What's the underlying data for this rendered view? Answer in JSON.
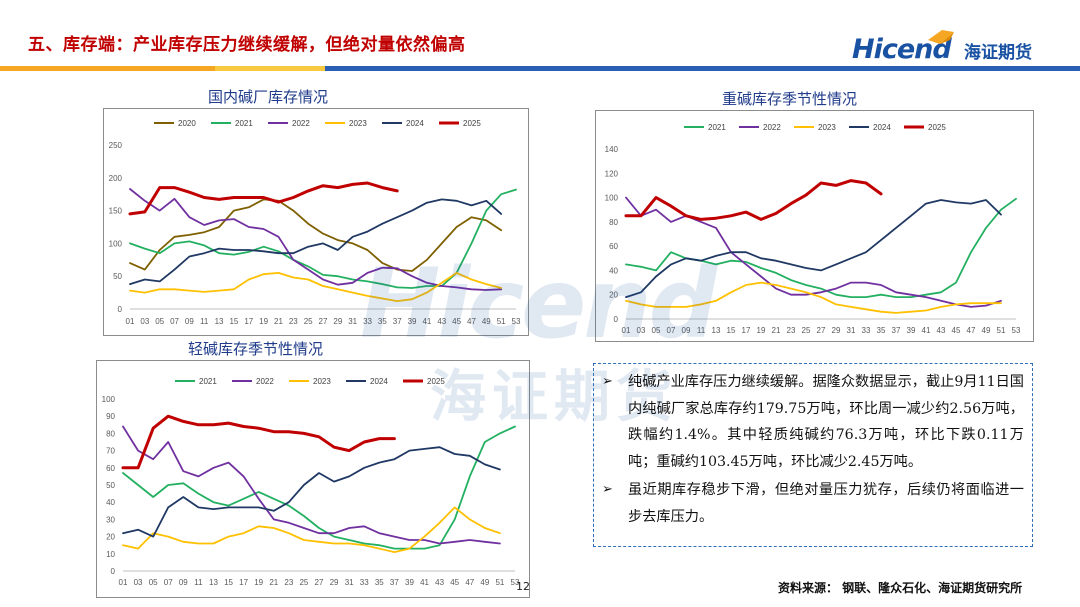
{
  "header": {
    "title": "五、库存端：产业库存压力继续缓解，但绝对量依然偏高",
    "logo_text": "Hicend",
    "logo_cn": "海证期货"
  },
  "colors": {
    "title_red": "#c00000",
    "brand_blue": "#1a52a3",
    "bar_blue": "#2b5fb4",
    "bar_orange": "#f5a623",
    "bar_yellow": "#f8c940"
  },
  "series_colors": {
    "2020": "#7f6000",
    "2021": "#23b061",
    "2022": "#7030a0",
    "2023": "#ffc000",
    "2024": "#1f3864",
    "2025": "#c00000"
  },
  "chart_data": [
    {
      "type": "line",
      "title": "国内碱厂库存情况",
      "ylim": [
        0,
        250
      ],
      "yticks": [
        0,
        50,
        100,
        150,
        200,
        250
      ],
      "x_tick_labels": [
        "01",
        "03",
        "05",
        "07",
        "09",
        "11",
        "13",
        "15",
        "17",
        "19",
        "21",
        "23",
        "25",
        "27",
        "29",
        "31",
        "33",
        "35",
        "37",
        "39",
        "41",
        "43",
        "45",
        "47",
        "49",
        "51",
        "53"
      ],
      "x": [
        1,
        3,
        5,
        7,
        9,
        11,
        13,
        15,
        17,
        19,
        21,
        23,
        25,
        27,
        29,
        31,
        33,
        35,
        37,
        39,
        41,
        43,
        45,
        47,
        49,
        51,
        53
      ],
      "legend": [
        "2020",
        "2021",
        "2022",
        "2023",
        "2024",
        "2025"
      ],
      "series": [
        {
          "name": "2020",
          "values": [
            70,
            60,
            90,
            110,
            113,
            117,
            125,
            150,
            155,
            167,
            165,
            150,
            130,
            115,
            105,
            100,
            90,
            70,
            60,
            58,
            75,
            100,
            125,
            140,
            135,
            120,
            null
          ]
        },
        {
          "name": "2021",
          "values": [
            100,
            92,
            85,
            100,
            103,
            97,
            85,
            83,
            87,
            95,
            88,
            75,
            65,
            52,
            50,
            45,
            42,
            38,
            33,
            32,
            35,
            35,
            55,
            100,
            150,
            175,
            182
          ]
        },
        {
          "name": "2022",
          "values": [
            183,
            165,
            150,
            168,
            140,
            128,
            135,
            137,
            125,
            122,
            110,
            75,
            60,
            45,
            37,
            40,
            55,
            63,
            62,
            50,
            40,
            35,
            33,
            30,
            29,
            30,
            null
          ]
        },
        {
          "name": "2023",
          "values": [
            28,
            25,
            30,
            30,
            28,
            26,
            28,
            30,
            45,
            53,
            55,
            48,
            45,
            35,
            30,
            25,
            20,
            16,
            12,
            15,
            25,
            40,
            55,
            45,
            38,
            32,
            null
          ]
        },
        {
          "name": "2024",
          "values": [
            38,
            45,
            42,
            60,
            80,
            85,
            92,
            90,
            90,
            88,
            85,
            85,
            95,
            100,
            90,
            110,
            118,
            130,
            140,
            150,
            162,
            167,
            165,
            158,
            165,
            145,
            null
          ]
        },
        {
          "name": "2025",
          "values": [
            145,
            148,
            185,
            185,
            178,
            170,
            167,
            170,
            170,
            170,
            163,
            170,
            180,
            188,
            185,
            190,
            192,
            185,
            180,
            null,
            null,
            null,
            null,
            null,
            null,
            null,
            null
          ]
        }
      ]
    },
    {
      "type": "line",
      "title": "重碱库存季节性情况",
      "ylim": [
        0,
        140
      ],
      "yticks": [
        0,
        20,
        40,
        60,
        80,
        100,
        120,
        140
      ],
      "x_tick_labels": [
        "01",
        "03",
        "05",
        "07",
        "09",
        "11",
        "13",
        "15",
        "17",
        "19",
        "21",
        "23",
        "25",
        "27",
        "29",
        "31",
        "33",
        "35",
        "37",
        "39",
        "41",
        "43",
        "45",
        "47",
        "49",
        "51",
        "53"
      ],
      "x": [
        1,
        3,
        5,
        7,
        9,
        11,
        13,
        15,
        17,
        19,
        21,
        23,
        25,
        27,
        29,
        31,
        33,
        35,
        37,
        39,
        41,
        43,
        45,
        47,
        49,
        51,
        53
      ],
      "legend": [
        "2021",
        "2022",
        "2023",
        "2024",
        "2025"
      ],
      "series": [
        {
          "name": "2021",
          "values": [
            45,
            43,
            40,
            55,
            50,
            48,
            45,
            48,
            47,
            42,
            38,
            32,
            28,
            25,
            20,
            18,
            18,
            20,
            18,
            18,
            20,
            22,
            30,
            55,
            75,
            90,
            99
          ]
        },
        {
          "name": "2022",
          "values": [
            100,
            85,
            90,
            80,
            85,
            80,
            75,
            55,
            45,
            35,
            25,
            20,
            20,
            22,
            25,
            30,
            30,
            28,
            22,
            20,
            18,
            15,
            12,
            10,
            11,
            15,
            null
          ]
        },
        {
          "name": "2023",
          "values": [
            15,
            12,
            10,
            10,
            10,
            12,
            15,
            22,
            28,
            30,
            28,
            25,
            22,
            18,
            12,
            10,
            8,
            6,
            5,
            6,
            7,
            10,
            12,
            13,
            13,
            13,
            null
          ]
        },
        {
          "name": "2024",
          "values": [
            18,
            22,
            35,
            45,
            50,
            48,
            52,
            55,
            55,
            50,
            48,
            45,
            42,
            40,
            45,
            50,
            55,
            65,
            75,
            85,
            95,
            98,
            96,
            95,
            98,
            86,
            null
          ]
        },
        {
          "name": "2025",
          "values": [
            85,
            85,
            100,
            93,
            85,
            82,
            83,
            85,
            88,
            82,
            87,
            95,
            102,
            112,
            110,
            114,
            112,
            103,
            null,
            null,
            null,
            null,
            null,
            null,
            null,
            null,
            null
          ]
        }
      ]
    },
    {
      "type": "line",
      "title": "轻碱库存季节性情况",
      "ylim": [
        0,
        100
      ],
      "yticks": [
        0,
        10,
        20,
        30,
        40,
        50,
        60,
        70,
        80,
        90,
        100
      ],
      "x_tick_labels": [
        "01",
        "03",
        "05",
        "07",
        "09",
        "11",
        "13",
        "15",
        "17",
        "19",
        "21",
        "23",
        "25",
        "27",
        "29",
        "31",
        "33",
        "35",
        "37",
        "39",
        "41",
        "43",
        "45",
        "47",
        "49",
        "51",
        "53"
      ],
      "x": [
        1,
        3,
        5,
        7,
        9,
        11,
        13,
        15,
        17,
        19,
        21,
        23,
        25,
        27,
        29,
        31,
        33,
        35,
        37,
        39,
        41,
        43,
        45,
        47,
        49,
        51,
        53
      ],
      "legend": [
        "2021",
        "2022",
        "2023",
        "2024",
        "2025"
      ],
      "series": [
        {
          "name": "2021",
          "values": [
            57,
            50,
            43,
            50,
            51,
            45,
            40,
            38,
            42,
            46,
            42,
            38,
            32,
            25,
            20,
            18,
            16,
            15,
            13,
            13,
            13,
            15,
            30,
            55,
            75,
            80,
            84
          ]
        },
        {
          "name": "2022",
          "values": [
            84,
            70,
            65,
            75,
            58,
            55,
            60,
            63,
            55,
            42,
            30,
            28,
            25,
            22,
            22,
            25,
            26,
            22,
            20,
            18,
            18,
            16,
            17,
            18,
            17,
            16,
            null
          ]
        },
        {
          "name": "2023",
          "values": [
            15,
            13,
            22,
            20,
            17,
            16,
            16,
            20,
            22,
            26,
            25,
            22,
            18,
            17,
            16,
            16,
            15,
            13,
            11,
            13,
            20,
            28,
            37,
            30,
            25,
            22,
            null
          ]
        },
        {
          "name": "2024",
          "values": [
            22,
            24,
            20,
            37,
            43,
            37,
            36,
            37,
            37,
            37,
            35,
            40,
            50,
            57,
            52,
            55,
            60,
            63,
            65,
            70,
            71,
            72,
            68,
            67,
            62,
            59,
            null
          ]
        },
        {
          "name": "2025",
          "values": [
            60,
            60,
            83,
            90,
            87,
            85,
            85,
            86,
            84,
            83,
            81,
            81,
            80,
            78,
            72,
            70,
            75,
            77,
            77,
            null,
            null,
            null,
            null,
            null,
            null,
            null,
            null
          ]
        }
      ]
    }
  ],
  "textbox": {
    "para1": "纯碱产业库存压力继续缓解。据隆众数据显示，截止9月11日国内纯碱厂家总库存约179.75万吨，环比周一减少约2.56万吨，跌幅约1.4%。其中轻质纯碱约76.3万吨，环比下跌0.11万吨；重碱约103.45万吨，环比减少2.45万吨。",
    "para2": "虽近期库存稳步下滑，但绝对量压力犹存，后续仍将面临进一步去库压力。",
    "bullet": "➢"
  },
  "footer": {
    "source": "资料来源：  钢联、隆众石化、海证期货研究所",
    "page": "12"
  }
}
